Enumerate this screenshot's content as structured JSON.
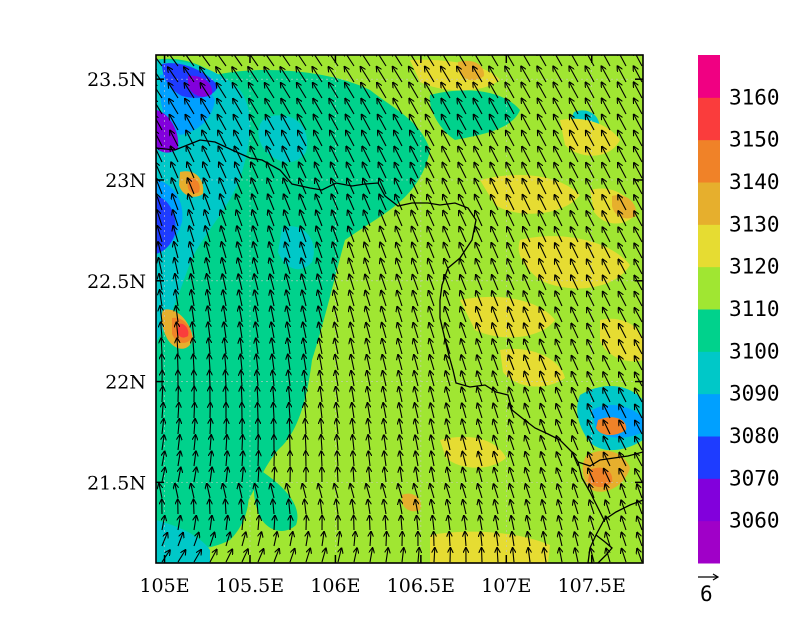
{
  "map": {
    "type": "contour-map-with-vectors",
    "x_ticks": [
      {
        "lon": 105.0,
        "label": "105E"
      },
      {
        "lon": 105.5,
        "label": "105.5E"
      },
      {
        "lon": 106.0,
        "label": "106E"
      },
      {
        "lon": 106.5,
        "label": "106.5E"
      },
      {
        "lon": 107.0,
        "label": "107E"
      },
      {
        "lon": 107.5,
        "label": "107.5E"
      }
    ],
    "y_ticks": [
      {
        "lat": 23.5,
        "label": "23.5N"
      },
      {
        "lat": 23.0,
        "label": "23N"
      },
      {
        "lat": 22.5,
        "label": "22.5N"
      },
      {
        "lat": 22.0,
        "label": "22N"
      },
      {
        "lat": 21.5,
        "label": "21.5N"
      }
    ],
    "lon_range": [
      104.95,
      107.8
    ],
    "lat_range": [
      21.1,
      23.62
    ],
    "grid": true
  },
  "colorbar": {
    "levels": [
      "3060",
      "3070",
      "3080",
      "3090",
      "3100",
      "3110",
      "3120",
      "3130",
      "3140",
      "3150",
      "3160"
    ],
    "colors": [
      "#a000c8",
      "#8200dc",
      "#1e3cff",
      "#00a0ff",
      "#00c8c8",
      "#00d28c",
      "#a0e632",
      "#e6dc32",
      "#e6af2d",
      "#f08228",
      "#fa3c3c",
      "#f00082"
    ]
  },
  "vector_reference": {
    "label": "6"
  },
  "field_colors": {
    "dominant": "#a0e632",
    "secondary": "#00d28c",
    "cyan": "#00c8c8",
    "light_blue": "#00a0ff",
    "blue": "#1e3cff",
    "purple": "#8200dc",
    "yellow": "#e6dc32",
    "orange": "#e6af2d",
    "dark_orange": "#f08228",
    "red": "#fa3c3c",
    "magenta": "#f00082"
  }
}
